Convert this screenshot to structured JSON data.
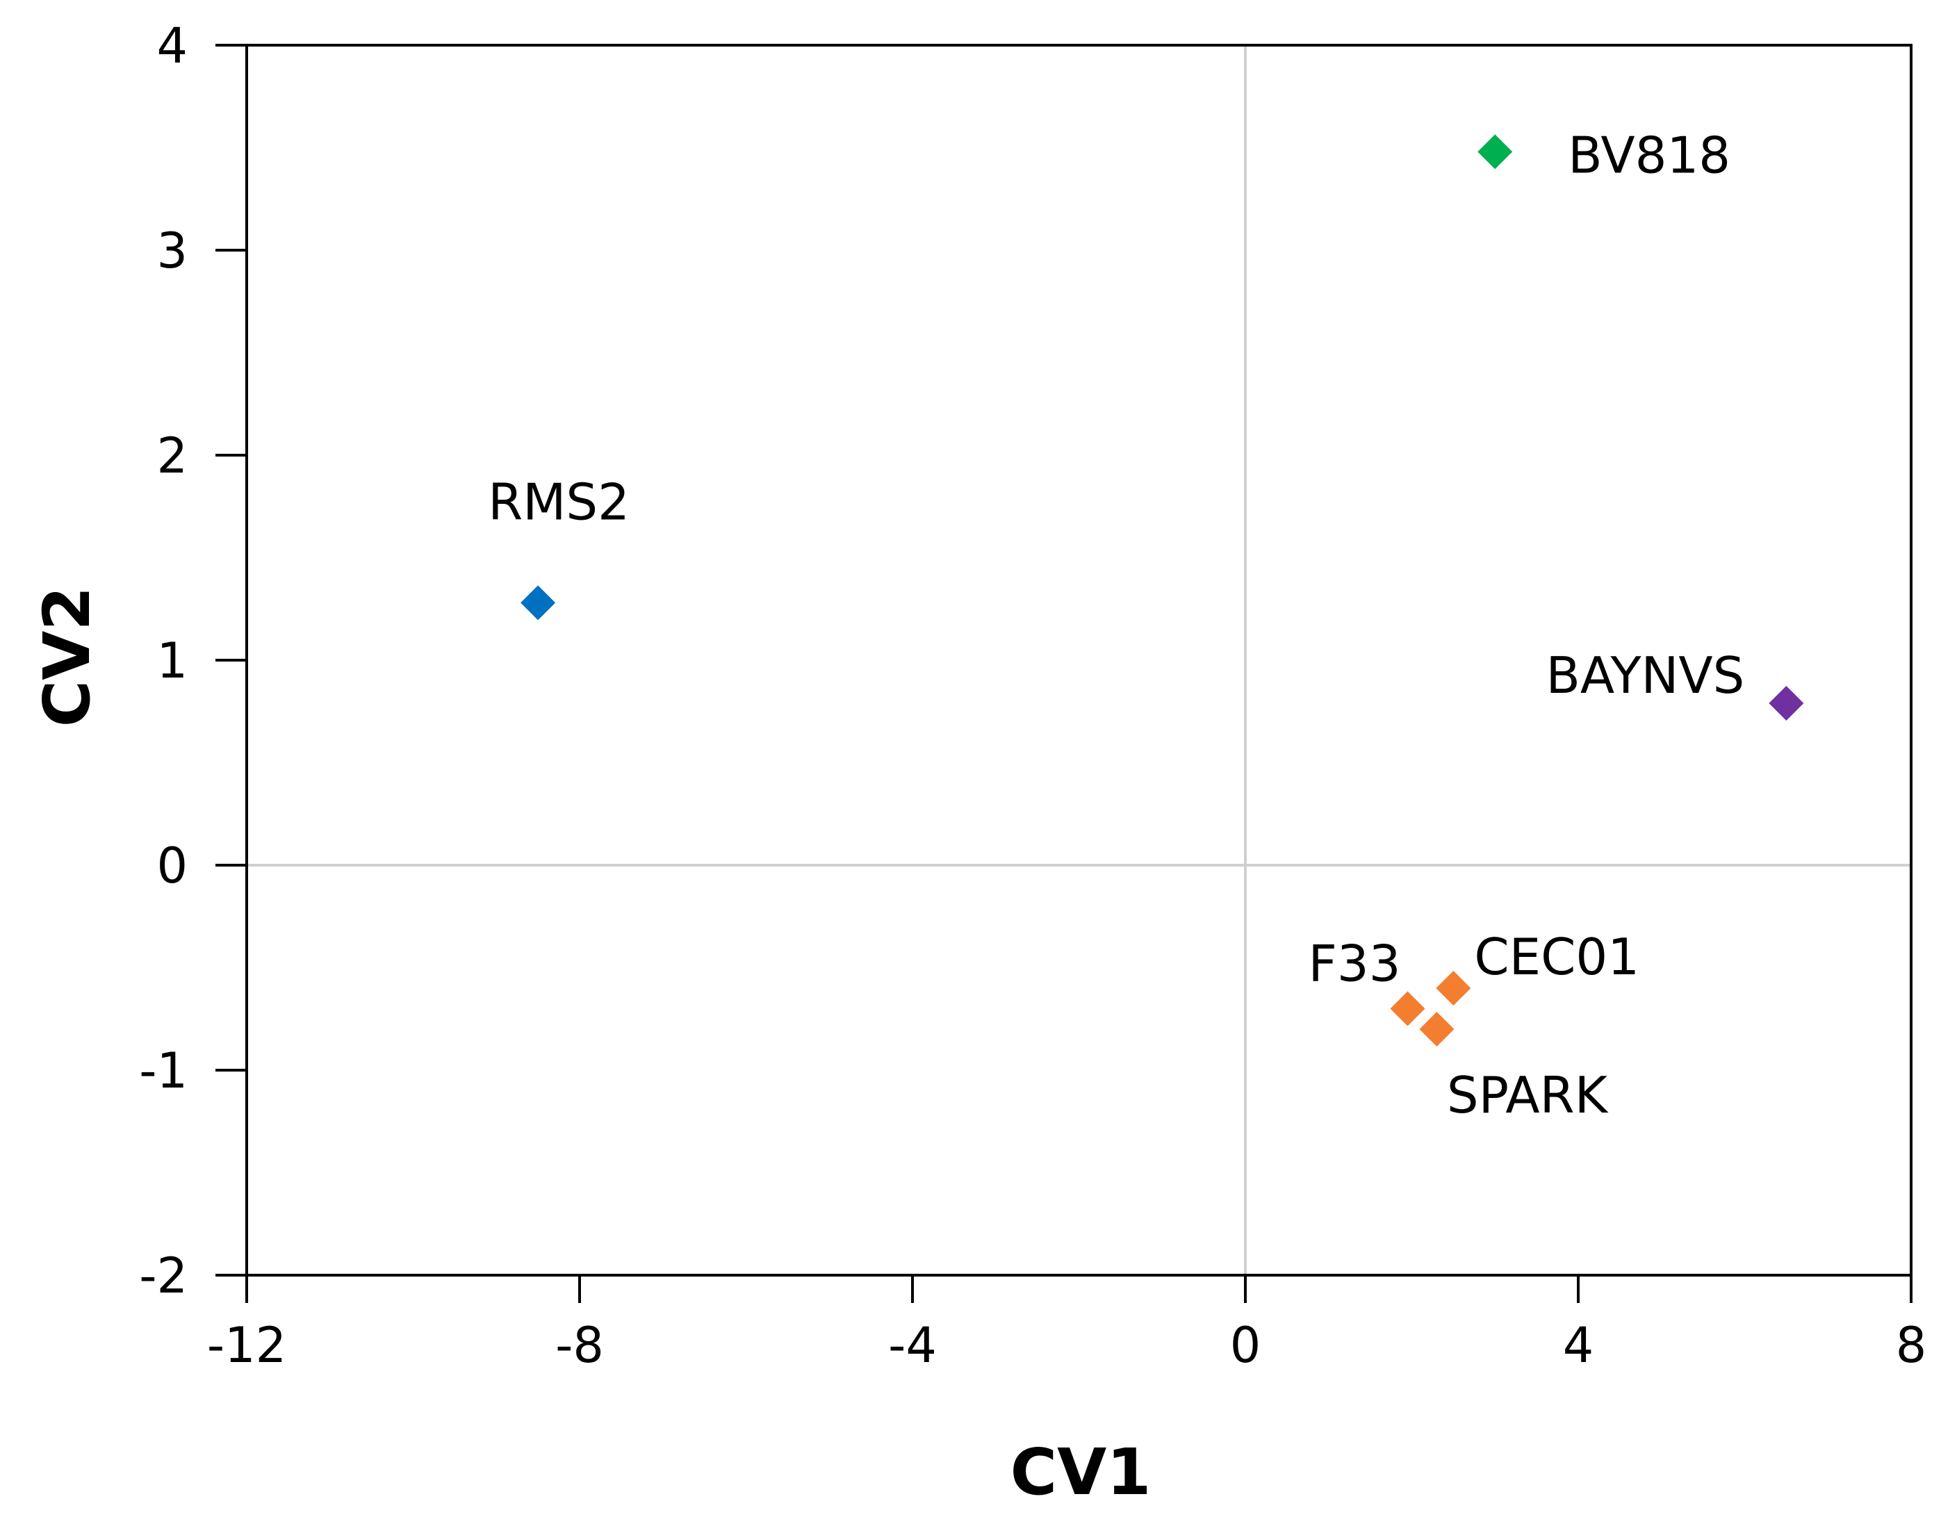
{
  "chart_data": {
    "type": "scatter",
    "title": "",
    "xlabel": "CV1",
    "ylabel": "CV2",
    "xlim": [
      -12,
      8
    ],
    "ylim": [
      -2,
      4
    ],
    "xticks": [
      -12,
      -8,
      -4,
      0,
      4,
      8
    ],
    "yticks": [
      -2,
      -1,
      0,
      1,
      2,
      3,
      4
    ],
    "xtick_labels": [
      "-12",
      "-8",
      "-4",
      "0",
      "4",
      "8"
    ],
    "ytick_labels": [
      "-2",
      "-1",
      "0",
      "1",
      "2",
      "3",
      "4"
    ],
    "reference_lines": {
      "x": 0,
      "y": 0
    },
    "marker": "diamond",
    "points": [
      {
        "label": "BV818",
        "x": 3.0,
        "y": 3.48,
        "color": "#00b050"
      },
      {
        "label": "RMS2",
        "x": -8.5,
        "y": 1.28,
        "color": "#0070c0"
      },
      {
        "label": "BAYNVS",
        "x": 6.5,
        "y": 0.79,
        "color": "#7030a0"
      },
      {
        "label": "F33",
        "x": 1.95,
        "y": -0.7,
        "color": "#f47e30"
      },
      {
        "label": "CEC01",
        "x": 2.5,
        "y": -0.6,
        "color": "#f47e30"
      },
      {
        "label": "SPARK",
        "x": 2.3,
        "y": -0.8,
        "color": "#f47e30"
      }
    ]
  }
}
